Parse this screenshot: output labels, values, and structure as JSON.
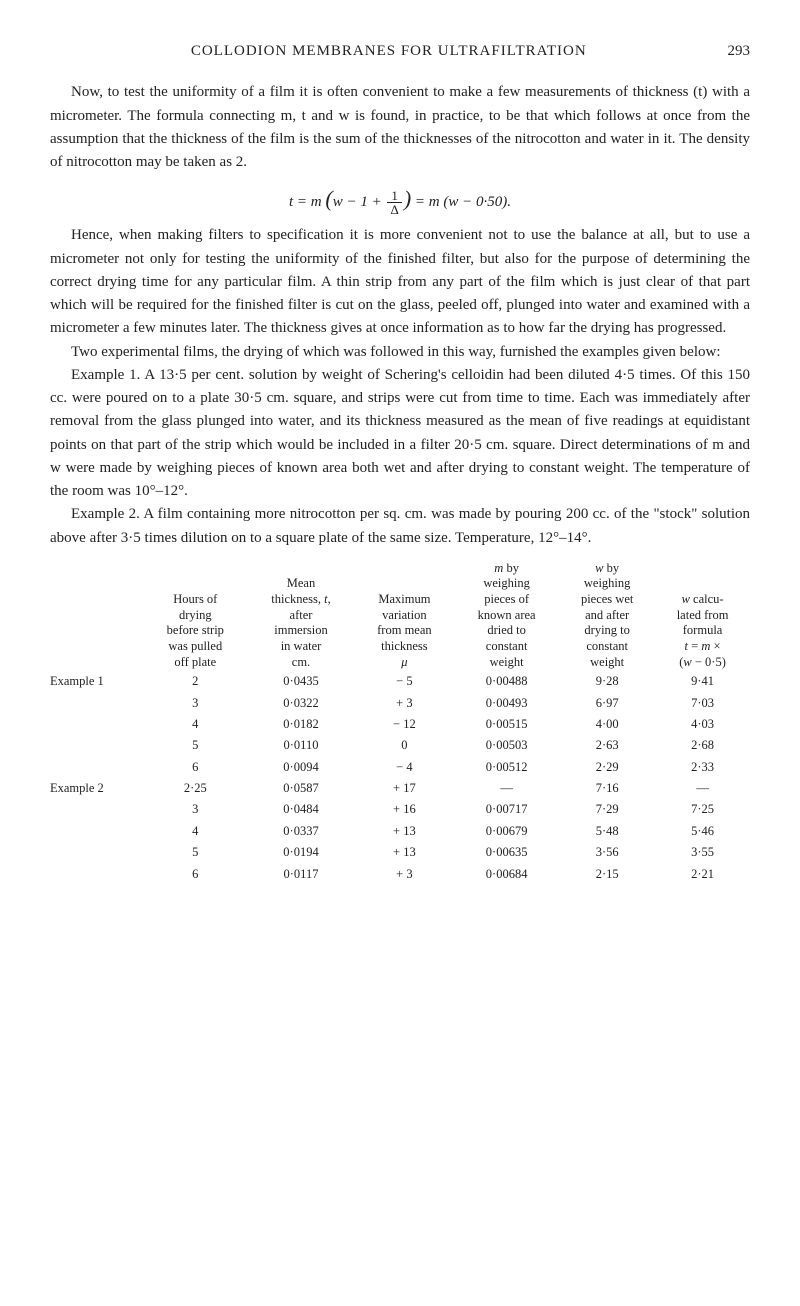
{
  "header": {
    "title": "COLLODION MEMBRANES FOR ULTRAFILTRATION",
    "page": "293"
  },
  "p1": "Now, to test the uniformity of a film it is often convenient to make a few measurements of thickness (t) with a micrometer. The formula connecting m, t and w is found, in practice, to be that which follows at once from the assumption that the thickness of the film is the sum of the thicknesses of the nitrocotton and water in it. The density of nitrocotton may be taken as 2.",
  "formula": "t = m (w − 1 + 1/Δ) = m (w − 0·50).",
  "p2": "Hence, when making filters to specification it is more convenient not to use the balance at all, but to use a micrometer not only for testing the uniformity of the finished filter, but also for the purpose of determining the correct drying time for any particular film. A thin strip from any part of the film which is just clear of that part which will be required for the finished filter is cut on the glass, peeled off, plunged into water and examined with a micrometer a few minutes later. The thickness gives at once information as to how far the drying has progressed.",
  "p3": "Two experimental films, the drying of which was followed in this way, furnished the examples given below:",
  "p4": "Example 1. A 13·5 per cent. solution by weight of Schering's celloidin had been diluted 4·5 times. Of this 150 cc. were poured on to a plate 30·5 cm. square, and strips were cut from time to time. Each was immediately after removal from the glass plunged into water, and its thickness measured as the mean of five readings at equidistant points on that part of the strip which would be included in a filter 20·5 cm. square. Direct determinations of m and w were made by weighing pieces of known area both wet and after drying to constant weight. The temperature of the room was 10°–12°.",
  "p5": "Example 2. A film containing more nitrocotton per sq. cm. was made by pouring 200 cc. of the \"stock\" solution above after 3·5 times dilution on to a square plate of the same size. Temperature, 12°–14°.",
  "table": {
    "headers": {
      "c0": "",
      "c1": "Hours of drying before strip was pulled off plate",
      "c2": "Mean thickness, t, after immersion in water cm.",
      "c3": "Maximum variation from mean thickness μ",
      "c4": "m by weighing pieces of known area dried to constant weight",
      "c5": "w by weighing pieces wet and after drying to constant weight",
      "c6": "w calculated from formula t = m × (w − 0·5)"
    },
    "rows": [
      {
        "c0": "Example 1",
        "c1": "2",
        "c2": "0·0435",
        "c3": "− 5",
        "c4": "0·00488",
        "c5": "9·28",
        "c6": "9·41"
      },
      {
        "c0": "",
        "c1": "3",
        "c2": "0·0322",
        "c3": "+ 3",
        "c4": "0·00493",
        "c5": "6·97",
        "c6": "7·03"
      },
      {
        "c0": "",
        "c1": "4",
        "c2": "0·0182",
        "c3": "− 12",
        "c4": "0·00515",
        "c5": "4·00",
        "c6": "4·03"
      },
      {
        "c0": "",
        "c1": "5",
        "c2": "0·0110",
        "c3": "0",
        "c4": "0·00503",
        "c5": "2·63",
        "c6": "2·68"
      },
      {
        "c0": "",
        "c1": "6",
        "c2": "0·0094",
        "c3": "− 4",
        "c4": "0·00512",
        "c5": "2·29",
        "c6": "2·33"
      },
      {
        "c0": "Example 2",
        "c1": "2·25",
        "c2": "0·0587",
        "c3": "+ 17",
        "c4": "—",
        "c5": "7·16",
        "c6": "—"
      },
      {
        "c0": "",
        "c1": "3",
        "c2": "0·0484",
        "c3": "+ 16",
        "c4": "0·00717",
        "c5": "7·29",
        "c6": "7·25"
      },
      {
        "c0": "",
        "c1": "4",
        "c2": "0·0337",
        "c3": "+ 13",
        "c4": "0·00679",
        "c5": "5·48",
        "c6": "5·46"
      },
      {
        "c0": "",
        "c1": "5",
        "c2": "0·0194",
        "c3": "+ 13",
        "c4": "0·00635",
        "c5": "3·56",
        "c6": "3·55"
      },
      {
        "c0": "",
        "c1": "6",
        "c2": "0·0117",
        "c3": "+ 3",
        "c4": "0·00684",
        "c5": "2·15",
        "c6": "2·21"
      }
    ]
  }
}
